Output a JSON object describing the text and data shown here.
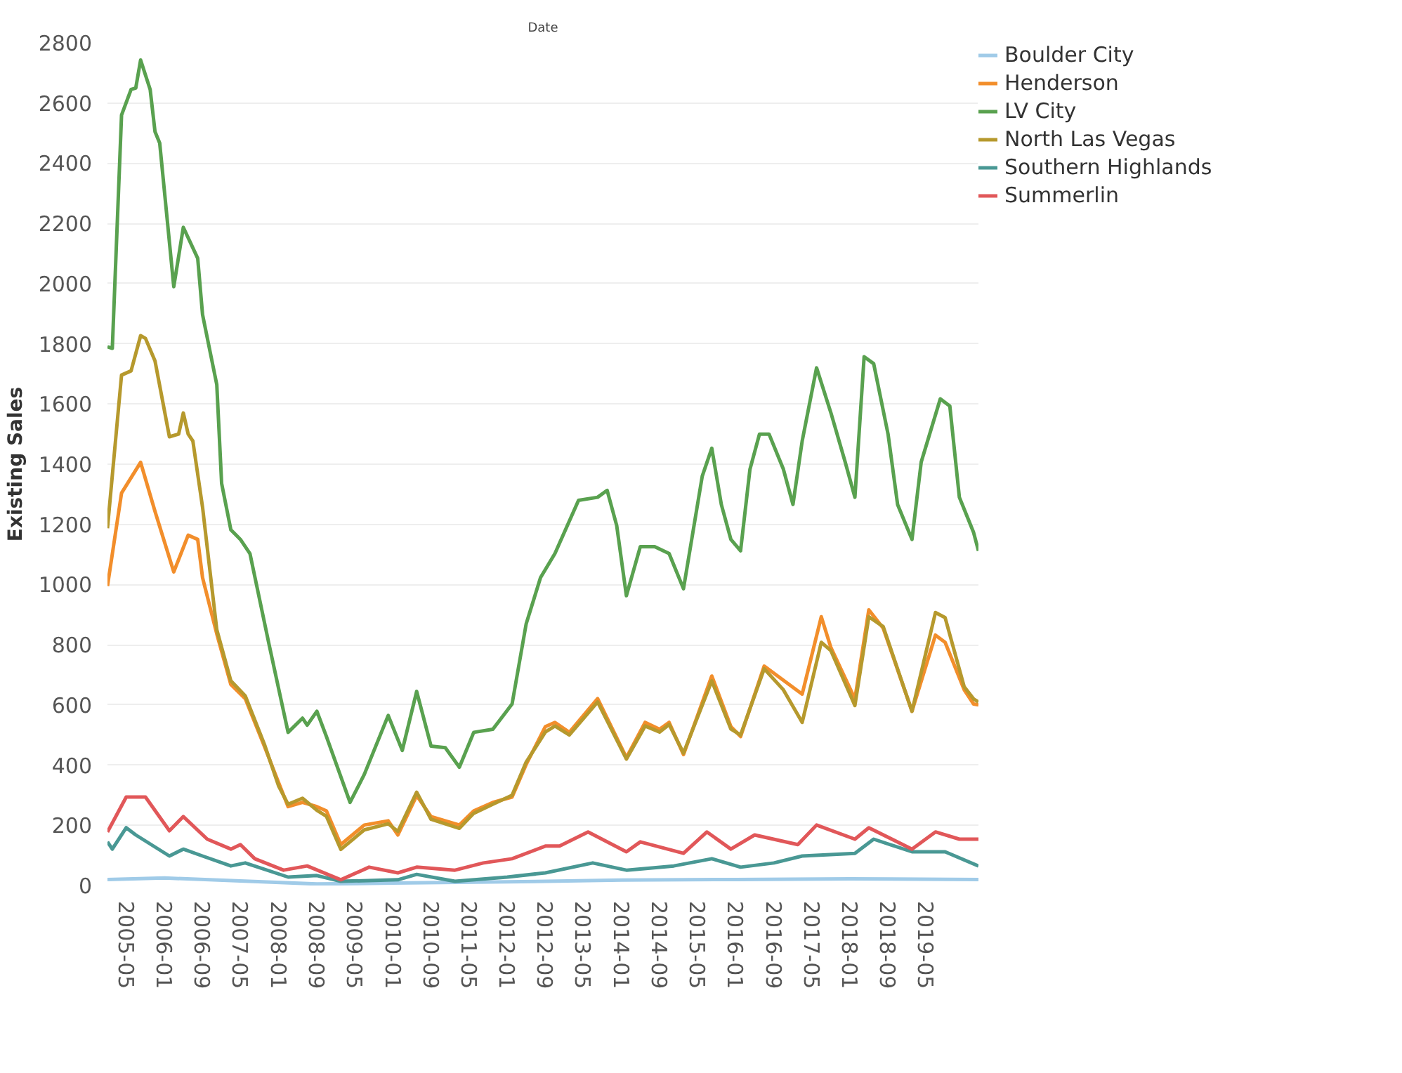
{
  "chart_data": {
    "type": "line",
    "xlabel": "Date",
    "ylabel": "Existing Sales",
    "xlim": [
      "2005-01",
      "2020-04"
    ],
    "xticks": [
      "2005-05",
      "2006-01",
      "2006-09",
      "2007-05",
      "2008-01",
      "2008-09",
      "2009-05",
      "2010-01",
      "2010-09",
      "2011-05",
      "2012-01",
      "2012-09",
      "2013-05",
      "2014-01",
      "2014-09",
      "2015-05",
      "2016-01",
      "2016-09",
      "2017-05",
      "2018-01",
      "2018-09",
      "2019-05"
    ],
    "ylim": [
      0,
      2800
    ],
    "yticks": [
      0,
      200,
      400,
      600,
      800,
      1000,
      1200,
      1400,
      1600,
      1800,
      2000,
      2200,
      2400,
      2600,
      2800
    ],
    "grid": "y",
    "legend": "top right",
    "line_style": "solid",
    "marker": "none",
    "series": [
      {
        "name": "Boulder City",
        "color": "#a0cbe8",
        "x": [
          "2005-01",
          "2006-01",
          "2007-05",
          "2008-09",
          "2010-01",
          "2012-01",
          "2014-01",
          "2016-01",
          "2018-01",
          "2020-04"
        ],
        "values": [
          20,
          25,
          15,
          5,
          8,
          12,
          18,
          20,
          22,
          20
        ]
      },
      {
        "name": "Henderson",
        "color": "#f28e2b",
        "x": [
          "2005-01",
          "2005-04",
          "2005-08",
          "2005-11",
          "2006-03",
          "2006-06",
          "2006-08",
          "2006-09",
          "2006-12",
          "2007-03",
          "2007-06",
          "2007-10",
          "2008-01",
          "2008-03",
          "2008-06",
          "2008-09",
          "2008-11",
          "2009-02",
          "2009-07",
          "2009-12",
          "2010-02",
          "2010-06",
          "2010-09",
          "2011-03",
          "2011-06",
          "2011-10",
          "2012-02",
          "2012-05",
          "2012-09",
          "2012-11",
          "2013-02",
          "2013-08",
          "2014-02",
          "2014-06",
          "2014-09",
          "2014-11",
          "2015-02",
          "2015-08",
          "2015-12",
          "2016-02",
          "2016-07",
          "2016-11",
          "2017-03",
          "2017-07",
          "2017-09",
          "2018-02",
          "2018-05",
          "2018-08",
          "2019-02",
          "2019-07",
          "2019-09",
          "2020-01",
          "2020-03",
          "2020-04"
        ],
        "values": [
          995,
          1304,
          1406,
          1243,
          1042,
          1164,
          1150,
          1023,
          836,
          668,
          621,
          463,
          341,
          262,
          276,
          262,
          248,
          136,
          201,
          215,
          168,
          299,
          229,
          201,
          248,
          276,
          294,
          402,
          528,
          542,
          509,
          621,
          425,
          542,
          519,
          542,
          435,
          696,
          528,
          495,
          729,
          682,
          636,
          893,
          790,
          620,
          916,
          855,
          579,
          832,
          808,
          650,
          603,
          600
        ]
      },
      {
        "name": "LV City",
        "color": "#59a14f",
        "x": [
          "2005-01",
          "2005-02",
          "2005-04",
          "2005-06",
          "2005-07",
          "2005-08",
          "2005-10",
          "2005-11",
          "2005-12",
          "2006-03",
          "2006-05",
          "2006-08",
          "2006-09",
          "2006-12",
          "2007-01",
          "2007-03",
          "2007-05",
          "2007-07",
          "2007-11",
          "2008-03",
          "2008-06",
          "2008-07",
          "2008-09",
          "2008-11",
          "2009-04",
          "2009-07",
          "2009-12",
          "2010-03",
          "2010-06",
          "2010-09",
          "2010-12",
          "2011-03",
          "2011-06",
          "2011-10",
          "2012-02",
          "2012-05",
          "2012-08",
          "2012-11",
          "2013-04",
          "2013-08",
          "2013-10",
          "2013-12",
          "2014-02",
          "2014-05",
          "2014-08",
          "2014-11",
          "2015-02",
          "2015-06",
          "2015-08",
          "2015-10",
          "2015-12",
          "2016-02",
          "2016-04",
          "2016-06",
          "2016-08",
          "2016-11",
          "2017-01",
          "2017-03",
          "2017-06",
          "2017-09",
          "2017-12",
          "2018-02",
          "2018-04",
          "2018-06",
          "2018-09",
          "2018-11",
          "2019-02",
          "2019-04",
          "2019-08",
          "2019-10",
          "2019-12",
          "2020-03",
          "2020-04"
        ],
        "values": [
          1790,
          1785,
          2560,
          2645,
          2650,
          2743,
          2645,
          2505,
          2467,
          1990,
          2187,
          2084,
          1897,
          1664,
          1336,
          1182,
          1150,
          1103,
          799,
          509,
          556,
          533,
          579,
          495,
          276,
          369,
          565,
          449,
          645,
          463,
          458,
          393,
          509,
          519,
          603,
          869,
          1023,
          1103,
          1280,
          1290,
          1313,
          1196,
          963,
          1126,
          1126,
          1103,
          986,
          1360,
          1453,
          1266,
          1150,
          1112,
          1383,
          1500,
          1500,
          1383,
          1266,
          1477,
          1720,
          1570,
          1407,
          1290,
          1757,
          1734,
          1500,
          1266,
          1150,
          1407,
          1617,
          1593,
          1290,
          1173,
          1112
        ]
      },
      {
        "name": "North Las Vegas",
        "color": "#b6992d",
        "x": [
          "2005-01",
          "2005-04",
          "2005-06",
          "2005-08",
          "2005-09",
          "2005-11",
          "2006-02",
          "2006-04",
          "2006-05",
          "2006-06",
          "2006-07",
          "2006-09",
          "2006-12",
          "2007-03",
          "2007-06",
          "2007-10",
          "2008-01",
          "2008-03",
          "2008-06",
          "2008-09",
          "2008-11",
          "2009-02",
          "2009-07",
          "2009-12",
          "2010-02",
          "2010-06",
          "2010-09",
          "2011-03",
          "2011-06",
          "2011-10",
          "2012-02",
          "2012-05",
          "2012-09",
          "2012-11",
          "2013-02",
          "2013-08",
          "2014-02",
          "2014-06",
          "2014-09",
          "2014-11",
          "2015-02",
          "2015-08",
          "2015-12",
          "2016-02",
          "2016-07",
          "2016-11",
          "2017-03",
          "2017-07",
          "2017-09",
          "2018-02",
          "2018-05",
          "2018-08",
          "2019-02",
          "2019-07",
          "2019-09",
          "2020-01",
          "2020-03",
          "2020-04"
        ],
        "values": [
          1187,
          1696,
          1710,
          1827,
          1818,
          1743,
          1491,
          1500,
          1570,
          1500,
          1477,
          1257,
          850,
          680,
          630,
          470,
          330,
          270,
          290,
          250,
          230,
          120,
          185,
          205,
          180,
          310,
          220,
          190,
          240,
          270,
          300,
          410,
          510,
          530,
          500,
          610,
          420,
          530,
          510,
          535,
          440,
          680,
          520,
          500,
          720,
          650,
          542,
          808,
          780,
          598,
          893,
          860,
          579,
          907,
          890,
          660,
          620,
          610
        ]
      },
      {
        "name": "Southern Highlands",
        "color": "#499894",
        "x": [
          "2005-01",
          "2005-02",
          "2005-05",
          "2005-07",
          "2006-02",
          "2006-05",
          "2006-09",
          "2007-03",
          "2007-06",
          "2008-03",
          "2008-09",
          "2009-02",
          "2010-02",
          "2010-06",
          "2011-02",
          "2012-01",
          "2012-09",
          "2013-07",
          "2014-02",
          "2014-12",
          "2015-08",
          "2016-02",
          "2016-09",
          "2017-03",
          "2018-02",
          "2018-06",
          "2019-02",
          "2019-09",
          "2020-04"
        ],
        "values": [
          145,
          121,
          192,
          168,
          98,
          121,
          98,
          65,
          75,
          28,
          33,
          14,
          19,
          37,
          14,
          28,
          42,
          75,
          51,
          65,
          89,
          61,
          75,
          98,
          107,
          154,
          112,
          112,
          65
        ]
      },
      {
        "name": "Summerlin",
        "color": "#e15759",
        "x": [
          "2005-01",
          "2005-05",
          "2005-09",
          "2006-02",
          "2006-05",
          "2006-10",
          "2007-03",
          "2007-05",
          "2007-08",
          "2008-02",
          "2008-07",
          "2009-02",
          "2009-08",
          "2010-02",
          "2010-06",
          "2011-02",
          "2011-08",
          "2012-02",
          "2012-09",
          "2012-12",
          "2013-06",
          "2014-02",
          "2014-05",
          "2015-02",
          "2015-07",
          "2015-12",
          "2016-05",
          "2017-02",
          "2017-06",
          "2018-02",
          "2018-05",
          "2019-02",
          "2019-07",
          "2019-12",
          "2020-04"
        ],
        "values": [
          178,
          294,
          294,
          182,
          229,
          154,
          121,
          136,
          89,
          51,
          65,
          19,
          61,
          42,
          61,
          51,
          75,
          89,
          131,
          131,
          178,
          112,
          145,
          107,
          178,
          121,
          168,
          136,
          201,
          154,
          192,
          121,
          178,
          154,
          154
        ]
      }
    ]
  }
}
